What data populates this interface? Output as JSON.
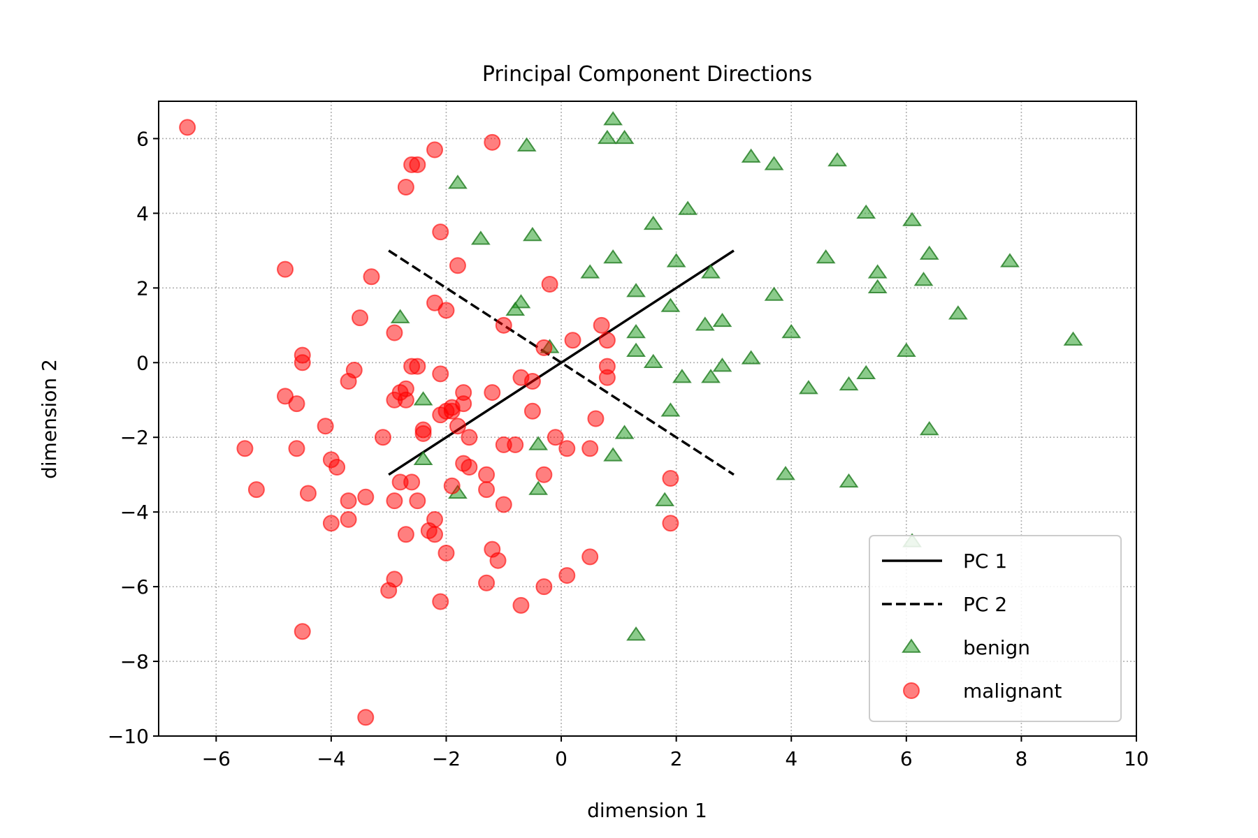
{
  "chart_data": {
    "type": "scatter",
    "title": "Principal Component Directions",
    "xlabel": "dimension 1",
    "ylabel": "dimension 2",
    "xlim": [
      -7,
      10
    ],
    "ylim": [
      -10,
      7
    ],
    "xticks": [
      -6,
      -4,
      -2,
      0,
      2,
      4,
      6,
      8,
      10
    ],
    "xtick_labels": [
      "−6",
      "−4",
      "−2",
      "0",
      "2",
      "4",
      "6",
      "8",
      "10"
    ],
    "yticks": [
      -10,
      -8,
      -6,
      -4,
      -2,
      0,
      2,
      4,
      6
    ],
    "ytick_labels": [
      "−10",
      "−8",
      "−6",
      "−4",
      "−2",
      "0",
      "2",
      "4",
      "6"
    ],
    "grid": true,
    "legend_position": "lower-right",
    "lines": [
      {
        "name": "PC 1",
        "style": "solid",
        "color": "#000000",
        "x": [
          -3,
          3
        ],
        "y": [
          -3,
          3
        ]
      },
      {
        "name": "PC 2",
        "style": "dashed",
        "color": "#000000",
        "x": [
          -3,
          3
        ],
        "y": [
          3,
          -3
        ]
      }
    ],
    "series": [
      {
        "name": "benign",
        "marker": "triangle",
        "color": "#2ca02c",
        "points": [
          [
            0.9,
            6.5
          ],
          [
            0.8,
            6.0
          ],
          [
            1.1,
            6.0
          ],
          [
            -0.6,
            5.8
          ],
          [
            3.3,
            5.5
          ],
          [
            3.7,
            5.3
          ],
          [
            4.8,
            5.4
          ],
          [
            -1.8,
            4.8
          ],
          [
            2.2,
            4.1
          ],
          [
            1.6,
            3.7
          ],
          [
            5.3,
            4.0
          ],
          [
            6.1,
            3.8
          ],
          [
            -1.4,
            3.3
          ],
          [
            -0.5,
            3.4
          ],
          [
            0.9,
            2.8
          ],
          [
            2.0,
            2.7
          ],
          [
            4.6,
            2.8
          ],
          [
            6.4,
            2.9
          ],
          [
            7.8,
            2.7
          ],
          [
            5.5,
            2.4
          ],
          [
            0.5,
            2.4
          ],
          [
            2.6,
            2.4
          ],
          [
            6.3,
            2.2
          ],
          [
            5.5,
            2.0
          ],
          [
            1.3,
            1.9
          ],
          [
            3.7,
            1.8
          ],
          [
            -0.7,
            1.6
          ],
          [
            -0.8,
            1.4
          ],
          [
            1.9,
            1.5
          ],
          [
            6.9,
            1.3
          ],
          [
            -2.8,
            1.2
          ],
          [
            2.5,
            1.0
          ],
          [
            2.8,
            1.1
          ],
          [
            1.3,
            0.8
          ],
          [
            4.0,
            0.8
          ],
          [
            8.9,
            0.6
          ],
          [
            -0.2,
            0.4
          ],
          [
            1.3,
            0.3
          ],
          [
            6.0,
            0.3
          ],
          [
            3.3,
            0.1
          ],
          [
            1.6,
            0.0
          ],
          [
            2.8,
            -0.1
          ],
          [
            2.1,
            -0.4
          ],
          [
            2.6,
            -0.4
          ],
          [
            5.3,
            -0.3
          ],
          [
            4.3,
            -0.7
          ],
          [
            5.0,
            -0.6
          ],
          [
            -2.4,
            -1.0
          ],
          [
            1.9,
            -1.3
          ],
          [
            6.4,
            -1.8
          ],
          [
            1.1,
            -1.9
          ],
          [
            -0.4,
            -2.2
          ],
          [
            0.9,
            -2.5
          ],
          [
            -2.4,
            -2.6
          ],
          [
            3.9,
            -3.0
          ],
          [
            5.0,
            -3.2
          ],
          [
            -1.8,
            -3.5
          ],
          [
            -0.4,
            -3.4
          ],
          [
            1.8,
            -3.7
          ],
          [
            6.1,
            -4.8
          ],
          [
            1.3,
            -7.3
          ]
        ]
      },
      {
        "name": "malignant",
        "marker": "circle",
        "color": "#ff0000",
        "points": [
          [
            -6.5,
            6.3
          ],
          [
            -1.2,
            5.9
          ],
          [
            -2.2,
            5.7
          ],
          [
            -2.6,
            5.3
          ],
          [
            -2.5,
            5.3
          ],
          [
            -2.7,
            4.7
          ],
          [
            -2.1,
            3.5
          ],
          [
            -1.8,
            2.6
          ],
          [
            -4.8,
            2.5
          ],
          [
            -3.3,
            2.3
          ],
          [
            -0.2,
            2.1
          ],
          [
            -2.2,
            1.6
          ],
          [
            -2.0,
            1.4
          ],
          [
            -3.5,
            1.2
          ],
          [
            -1.0,
            1.0
          ],
          [
            0.7,
            1.0
          ],
          [
            -2.9,
            0.8
          ],
          [
            0.2,
            0.6
          ],
          [
            0.8,
            0.6
          ],
          [
            -0.3,
            0.4
          ],
          [
            -4.5,
            0.2
          ],
          [
            -4.5,
            0.0
          ],
          [
            -2.5,
            -0.1
          ],
          [
            -2.6,
            -0.1
          ],
          [
            0.8,
            -0.1
          ],
          [
            -3.6,
            -0.2
          ],
          [
            -2.1,
            -0.3
          ],
          [
            0.8,
            -0.4
          ],
          [
            -3.7,
            -0.5
          ],
          [
            -0.7,
            -0.4
          ],
          [
            -0.5,
            -0.5
          ],
          [
            -2.7,
            -0.7
          ],
          [
            -1.7,
            -0.8
          ],
          [
            -2.8,
            -0.8
          ],
          [
            -4.8,
            -0.9
          ],
          [
            -2.9,
            -1.0
          ],
          [
            -2.7,
            -1.0
          ],
          [
            -1.2,
            -0.8
          ],
          [
            -1.7,
            -1.1
          ],
          [
            -4.6,
            -1.1
          ],
          [
            -1.9,
            -1.2
          ],
          [
            -1.9,
            -1.3
          ],
          [
            -2.0,
            -1.3
          ],
          [
            -0.5,
            -1.3
          ],
          [
            -2.1,
            -1.4
          ],
          [
            0.6,
            -1.5
          ],
          [
            -1.8,
            -1.7
          ],
          [
            -4.1,
            -1.7
          ],
          [
            -2.4,
            -1.8
          ],
          [
            -2.4,
            -1.9
          ],
          [
            -1.6,
            -2.0
          ],
          [
            -3.1,
            -2.0
          ],
          [
            -0.1,
            -2.0
          ],
          [
            -1.0,
            -2.2
          ],
          [
            -0.8,
            -2.2
          ],
          [
            0.1,
            -2.3
          ],
          [
            0.5,
            -2.3
          ],
          [
            -5.5,
            -2.3
          ],
          [
            -4.6,
            -2.3
          ],
          [
            -4.0,
            -2.6
          ],
          [
            -3.9,
            -2.8
          ],
          [
            -1.7,
            -2.7
          ],
          [
            -1.6,
            -2.8
          ],
          [
            -1.3,
            -3.0
          ],
          [
            -0.3,
            -3.0
          ],
          [
            -2.8,
            -3.2
          ],
          [
            -2.6,
            -3.2
          ],
          [
            1.9,
            -3.1
          ],
          [
            -1.9,
            -3.3
          ],
          [
            -5.3,
            -3.4
          ],
          [
            -4.4,
            -3.5
          ],
          [
            -3.4,
            -3.6
          ],
          [
            -1.3,
            -3.4
          ],
          [
            -3.7,
            -3.7
          ],
          [
            -2.9,
            -3.7
          ],
          [
            -2.5,
            -3.7
          ],
          [
            -1.0,
            -3.8
          ],
          [
            -2.2,
            -4.2
          ],
          [
            -3.7,
            -4.2
          ],
          [
            -4.0,
            -4.3
          ],
          [
            1.9,
            -4.3
          ],
          [
            -2.3,
            -4.5
          ],
          [
            -2.2,
            -4.6
          ],
          [
            -2.7,
            -4.6
          ],
          [
            -1.2,
            -5.0
          ],
          [
            -2.0,
            -5.1
          ],
          [
            -1.1,
            -5.3
          ],
          [
            0.5,
            -5.2
          ],
          [
            -2.9,
            -5.8
          ],
          [
            0.1,
            -5.7
          ],
          [
            -1.3,
            -5.9
          ],
          [
            -0.3,
            -6.0
          ],
          [
            -3.0,
            -6.1
          ],
          [
            -2.1,
            -6.4
          ],
          [
            -0.7,
            -6.5
          ],
          [
            -4.5,
            -7.2
          ],
          [
            -3.4,
            -9.5
          ]
        ]
      }
    ],
    "legend": [
      {
        "label": "PC 1",
        "kind": "solid-line"
      },
      {
        "label": "PC 2",
        "kind": "dashed-line"
      },
      {
        "label": "benign",
        "kind": "triangle"
      },
      {
        "label": "malignant",
        "kind": "circle"
      }
    ]
  }
}
